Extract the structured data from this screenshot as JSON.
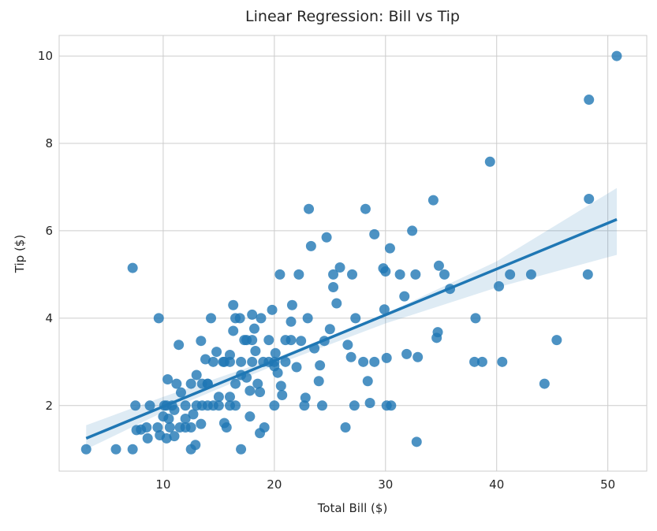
{
  "chart_data": {
    "type": "scatter",
    "title": "Linear Regression: Bill vs Tip",
    "x_label": "Total Bill ($)",
    "y_label": "Tip ($)",
    "xlim": [
      0.64,
      53.5
    ],
    "ylim": [
      0.5,
      10.47
    ],
    "xticks": [
      10,
      20,
      30,
      40,
      50
    ],
    "yticks": [
      2,
      4,
      6,
      8,
      10
    ],
    "grid": true,
    "series": [
      {
        "color": "#1f77b4",
        "x": [
          3.07,
          5.75,
          7.25,
          7.25,
          7.5,
          7.6,
          8,
          8.5,
          8.6,
          8.8,
          9.6,
          9.7,
          10,
          10.1,
          10.3,
          10.3,
          10.4,
          10.6,
          10.8,
          11,
          11.2,
          11.4,
          11.6,
          12,
          12.5,
          12.5,
          12.7,
          12.9,
          13,
          13.4,
          13.4,
          13.8,
          14,
          14.3,
          14.5,
          14.8,
          15,
          15.4,
          15.5,
          15.7,
          16,
          16,
          16.3,
          16.3,
          16.5,
          16.5,
          16.9,
          17,
          17.3,
          17.5,
          17.8,
          17.8,
          18,
          18.2,
          18.3,
          18.7,
          18.7,
          18.8,
          19.1,
          19.5,
          19.8,
          20,
          20.1,
          20.3,
          20.5,
          20.6,
          20.7,
          21,
          21.5,
          21.6,
          22,
          22.2,
          22.4,
          22.7,
          22.8,
          23,
          23.1,
          23.3,
          23.6,
          24,
          24.1,
          24.3,
          24.5,
          24.7,
          25,
          25.3,
          25.3,
          25.6,
          25.9,
          26.4,
          26.6,
          26.9,
          27,
          27.2,
          27.3,
          28,
          28.2,
          28.4,
          28.6,
          29,
          29,
          29.8,
          29.9,
          30,
          30.1,
          30.1,
          30.4,
          30.5,
          31.3,
          31.7,
          31.9,
          32.4,
          32.7,
          32.8,
          32.9,
          34.3,
          34.6,
          34.7,
          34.8,
          35.3,
          35.8,
          38,
          38.1,
          38.7,
          39.4,
          40.2,
          40.5,
          41.2,
          43.1,
          44.3,
          45.4,
          48.2,
          48.3,
          48.3,
          50.8,
          12,
          13,
          14,
          15,
          16.5,
          11.5,
          12.5,
          13.5,
          14.5,
          15.5,
          16,
          17,
          18,
          19,
          20,
          17.5,
          18,
          19.5,
          21,
          13.5,
          14,
          10.5,
          9.5,
          11,
          12,
          16,
          17,
          18.5,
          20,
          21.5
        ],
        "values": [
          1,
          1,
          1,
          5.15,
          2,
          1.44,
          1.45,
          1.5,
          1.25,
          2,
          4,
          1.32,
          1.75,
          2,
          1.25,
          2,
          2.6,
          1.5,
          2,
          1.9,
          2.5,
          3.39,
          2.3,
          1.5,
          2.5,
          1,
          1.8,
          1.1,
          2.7,
          3.48,
          1.58,
          3.06,
          2.5,
          4,
          2,
          3.23,
          2.2,
          3,
          1.6,
          1.5,
          2,
          3.16,
          4.3,
          3.71,
          2.5,
          4,
          4,
          1,
          3.5,
          2.64,
          2.34,
          1.75,
          4.08,
          3.76,
          3.25,
          1.37,
          2.31,
          4,
          1.5,
          3,
          4.19,
          2,
          3.2,
          2.75,
          5,
          2.45,
          2.24,
          3.5,
          3.92,
          4.3,
          2.88,
          5,
          3.48,
          2,
          2.18,
          4,
          6.5,
          5.65,
          3.31,
          2.56,
          2.92,
          2,
          3.48,
          5.85,
          3.75,
          4.71,
          5,
          4.34,
          5.16,
          1.5,
          3.39,
          3.11,
          5,
          2,
          4,
          3,
          6.5,
          2.56,
          2.06,
          5.92,
          3,
          5.14,
          4.2,
          5.07,
          2,
          3.09,
          5.6,
          2,
          5,
          4.5,
          3.18,
          6,
          5,
          1.17,
          3.11,
          6.7,
          3.55,
          3.68,
          5.2,
          5,
          4.67,
          3,
          4,
          3,
          7.58,
          4.73,
          3,
          5,
          5,
          2.5,
          3.5,
          5,
          6.73,
          9,
          10,
          2,
          2,
          2,
          2,
          2,
          1.5,
          1.5,
          2,
          3,
          3,
          3,
          3,
          3,
          3,
          3,
          3.5,
          3.5,
          3.5,
          3,
          2.5,
          2.5,
          1.7,
          1.5,
          1.3,
          1.7,
          2.2,
          2.7,
          2.5,
          2.9,
          3.5
        ]
      }
    ],
    "regression": {
      "color": "#1f77b4",
      "x": [
        3.07,
        50.81
      ],
      "values": [
        1.25,
        6.26
      ]
    },
    "ci_band": {
      "x": [
        3.07,
        10,
        20,
        30,
        40,
        50.81
      ],
      "lower": [
        1.0,
        1.85,
        2.92,
        3.88,
        4.7,
        5.45
      ],
      "upper": [
        1.55,
        2.2,
        3.08,
        4.1,
        5.3,
        6.98
      ]
    }
  }
}
